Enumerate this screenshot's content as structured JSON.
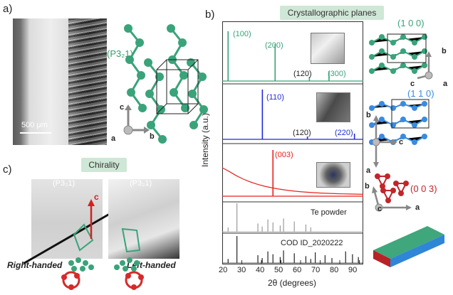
{
  "panel_a": {
    "label": "a)",
    "scale_bar": "500 μm",
    "space_group": "(P3₂1)",
    "axes": {
      "c": "c",
      "a": "a",
      "b": "b"
    }
  },
  "panel_b": {
    "label": "b)",
    "title": "Crystallographic planes",
    "ylabel": "Intensity (a.u.)",
    "xlabel": "2θ (degrees)",
    "xticks": [
      "20",
      "30",
      "40",
      "50",
      "60",
      "70",
      "80",
      "90"
    ],
    "annotations": {
      "s1_100": "(100)",
      "s1_200": "(200)",
      "s1_120": "(120)",
      "s1_300": "(300)",
      "s2_110": "(110)",
      "s2_120": "(120)",
      "s2_220": "(220)",
      "s3_003": "(003)",
      "s4": "Te powder",
      "s5": "COD ID_2020222"
    },
    "plane_labels": {
      "p100": "(1 0 0)",
      "p110": "(1 1 0)",
      "p003": "(0 0 3)"
    },
    "axes_labels": {
      "b1": "b",
      "c1": "c",
      "a1": "a",
      "b2": "b",
      "a2": "a",
      "c2": "c",
      "b3": "b",
      "a3": "a",
      "c3": "c"
    },
    "colors": {
      "s1": "#3aa37a",
      "s2": "#1f2bd6",
      "s3": "#e8231f",
      "s4": "#9a9a9a",
      "s5": "#222222"
    }
  },
  "panel_c": {
    "label": "c)",
    "title": "Chirality",
    "space_group_left": "(P3₂1)",
    "space_group_right": "(P3₂1)",
    "c_axis": "c",
    "right_handed": "Right-handed",
    "left_handed": "Left-handed"
  },
  "chart_data": {
    "type": "line",
    "xlabel": "2θ (degrees)",
    "ylabel": "Intensity (a.u.)",
    "xlim": [
      20,
      92
    ],
    "series": [
      {
        "name": "(1 0 0)",
        "peaks": [
          {
            "x": 23.0,
            "label": "(100)"
          },
          {
            "x": 47.0,
            "label": "(200)"
          },
          {
            "x": 64.5,
            "label": "(120)"
          },
          {
            "x": 74.5,
            "label": "(300)"
          }
        ]
      },
      {
        "name": "(1 1 0)",
        "peaks": [
          {
            "x": 40.5,
            "label": "(110)"
          },
          {
            "x": 63.5,
            "label": "(120)"
          },
          {
            "x": 87.5,
            "label": "(220)"
          }
        ]
      },
      {
        "name": "(0 0 3)",
        "peaks": [
          {
            "x": 45.9,
            "label": "(003)"
          }
        ]
      },
      {
        "name": "Te powder",
        "peaks": [
          {
            "x": 23.0
          },
          {
            "x": 27.5
          },
          {
            "x": 38.2
          },
          {
            "x": 40.4
          },
          {
            "x": 43.3
          },
          {
            "x": 45.9
          },
          {
            "x": 49.6
          },
          {
            "x": 51.3
          },
          {
            "x": 56.8
          },
          {
            "x": 62.7
          },
          {
            "x": 65.2
          }
        ]
      },
      {
        "name": "COD ID_2020222",
        "peaks": [
          {
            "x": 23.0
          },
          {
            "x": 27.5
          },
          {
            "x": 38.2
          },
          {
            "x": 40.4
          },
          {
            "x": 43.3
          },
          {
            "x": 45.9
          },
          {
            "x": 49.6
          },
          {
            "x": 51.3
          },
          {
            "x": 56.8
          },
          {
            "x": 62.7
          },
          {
            "x": 65.2
          },
          {
            "x": 67.5
          },
          {
            "x": 72.5
          },
          {
            "x": 76.0
          },
          {
            "x": 83.0
          },
          {
            "x": 86.5
          },
          {
            "x": 89.5
          }
        ]
      }
    ]
  }
}
